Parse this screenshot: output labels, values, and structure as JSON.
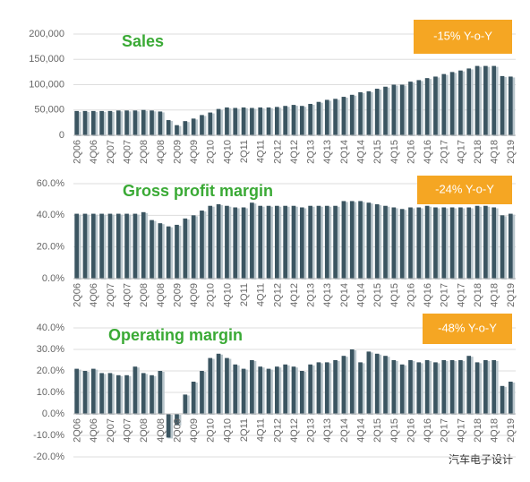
{
  "chart_data": [
    {
      "type": "bar",
      "title": "Sales",
      "annotation": "-15% Y-o-Y",
      "color": "#3b5561",
      "grid": true,
      "categories": [
        "2Q06",
        null,
        "4Q06",
        null,
        "2Q07",
        null,
        "4Q07",
        null,
        "2Q08",
        null,
        "4Q08",
        null,
        "2Q09",
        null,
        "4Q09",
        null,
        "2Q10",
        null,
        "4Q10",
        null,
        "2Q11",
        null,
        "4Q11",
        null,
        "2Q12",
        null,
        "4Q12",
        null,
        "2Q13",
        null,
        "4Q13",
        null,
        "2Q14",
        null,
        "4Q14",
        null,
        "2Q15",
        null,
        "4Q15",
        null,
        "2Q16",
        null,
        "4Q16",
        null,
        "2Q17",
        null,
        "4Q17",
        null,
        "2Q18",
        null,
        "4Q18",
        null,
        "2Q19"
      ],
      "values": [
        48000,
        48000,
        48000,
        48000,
        48000,
        49000,
        49000,
        49000,
        50000,
        49000,
        47000,
        30000,
        20000,
        28000,
        33000,
        40000,
        45000,
        52000,
        55000,
        54000,
        55000,
        54000,
        55000,
        55000,
        56000,
        58000,
        60000,
        58000,
        62000,
        66000,
        70000,
        72000,
        76000,
        80000,
        85000,
        87000,
        92000,
        96000,
        100000,
        100000,
        106000,
        109000,
        113000,
        116000,
        121000,
        125000,
        128000,
        132000,
        137000,
        137000,
        137000,
        117000,
        116000
      ],
      "ylim": [
        0,
        200000
      ],
      "yticks": [
        0,
        {
          "value": 50000,
          "label": "50,000"
        },
        {
          "value": 100000,
          "label": "100,000"
        },
        {
          "value": 150000,
          "label": "150,000"
        },
        {
          "value": 200000,
          "label": "200,000"
        }
      ]
    },
    {
      "type": "bar",
      "title": "Gross profit margin",
      "annotation": "-24% Y-o-Y",
      "color": "#3b5561",
      "grid": true,
      "categories": [
        "2Q06",
        null,
        "4Q06",
        null,
        "2Q07",
        null,
        "4Q07",
        null,
        "2Q08",
        null,
        "4Q08",
        null,
        "2Q09",
        null,
        "4Q09",
        null,
        "2Q10",
        null,
        "4Q10",
        null,
        "2Q11",
        null,
        "4Q11",
        null,
        "2Q12",
        null,
        "4Q12",
        null,
        "2Q13",
        null,
        "4Q13",
        null,
        "2Q14",
        null,
        "4Q14",
        null,
        "2Q15",
        null,
        "4Q15",
        null,
        "2Q16",
        null,
        "4Q16",
        null,
        "2Q17",
        null,
        "4Q17",
        null,
        "2Q18",
        null,
        "4Q18",
        null,
        "2Q19"
      ],
      "values": [
        41,
        41,
        41,
        41,
        41,
        41,
        41,
        41,
        42,
        37,
        35,
        33,
        34,
        38,
        40,
        43,
        46,
        47,
        46,
        45,
        45,
        48,
        46,
        46,
        46,
        46,
        46,
        45,
        46,
        46,
        46,
        46,
        49,
        49,
        49,
        48,
        47,
        46,
        45,
        44,
        45,
        45,
        46,
        45,
        45,
        45,
        45,
        45,
        46,
        46,
        45,
        40,
        41
      ],
      "ylim": [
        0,
        60
      ],
      "yticks": [
        {
          "value": 0,
          "label": "0.0%"
        },
        {
          "value": 20,
          "label": "20.0%"
        },
        {
          "value": 40,
          "label": "40.0%"
        },
        {
          "value": 60,
          "label": "60.0%"
        }
      ]
    },
    {
      "type": "bar",
      "title": "Operating margin",
      "annotation": "-48% Y-o-Y",
      "color": "#3b5561",
      "grid": true,
      "categories": [
        "2Q06",
        null,
        "4Q06",
        null,
        "2Q07",
        null,
        "4Q07",
        null,
        "2Q08",
        null,
        "4Q08",
        null,
        "2Q09",
        null,
        "4Q09",
        null,
        "2Q10",
        null,
        "4Q10",
        null,
        "2Q11",
        null,
        "4Q11",
        null,
        "2Q12",
        null,
        "4Q12",
        null,
        "2Q13",
        null,
        "4Q13",
        null,
        "2Q14",
        null,
        "4Q14",
        null,
        "2Q15",
        null,
        "4Q15",
        null,
        "2Q16",
        null,
        "4Q16",
        null,
        "2Q17",
        null,
        "4Q17",
        null,
        "2Q18",
        null,
        "4Q18",
        null,
        "2Q19"
      ],
      "values": [
        21,
        20,
        21,
        19,
        19,
        18,
        18,
        22,
        19,
        18,
        20,
        -11,
        -5,
        9,
        15,
        20,
        26,
        28,
        26,
        23,
        21,
        25,
        22,
        21,
        22,
        23,
        22,
        20,
        23,
        24,
        24,
        25,
        27,
        30,
        24,
        29,
        28,
        27,
        25,
        23,
        25,
        24,
        25,
        24,
        25,
        25,
        25,
        27,
        24,
        25,
        25,
        13,
        15
      ],
      "ylim": [
        -20,
        40
      ],
      "yticks": [
        {
          "value": -20,
          "label": "-20.0%"
        },
        {
          "value": -10,
          "label": "-10.0%"
        },
        {
          "value": 0,
          "label": "0.0%"
        },
        {
          "value": 10,
          "label": "10.0%"
        },
        {
          "value": 20,
          "label": "20.0%"
        },
        {
          "value": 30,
          "label": "30.0%"
        },
        {
          "value": 40,
          "label": "40.0%"
        }
      ]
    }
  ],
  "watermark": "汽车电子设计"
}
